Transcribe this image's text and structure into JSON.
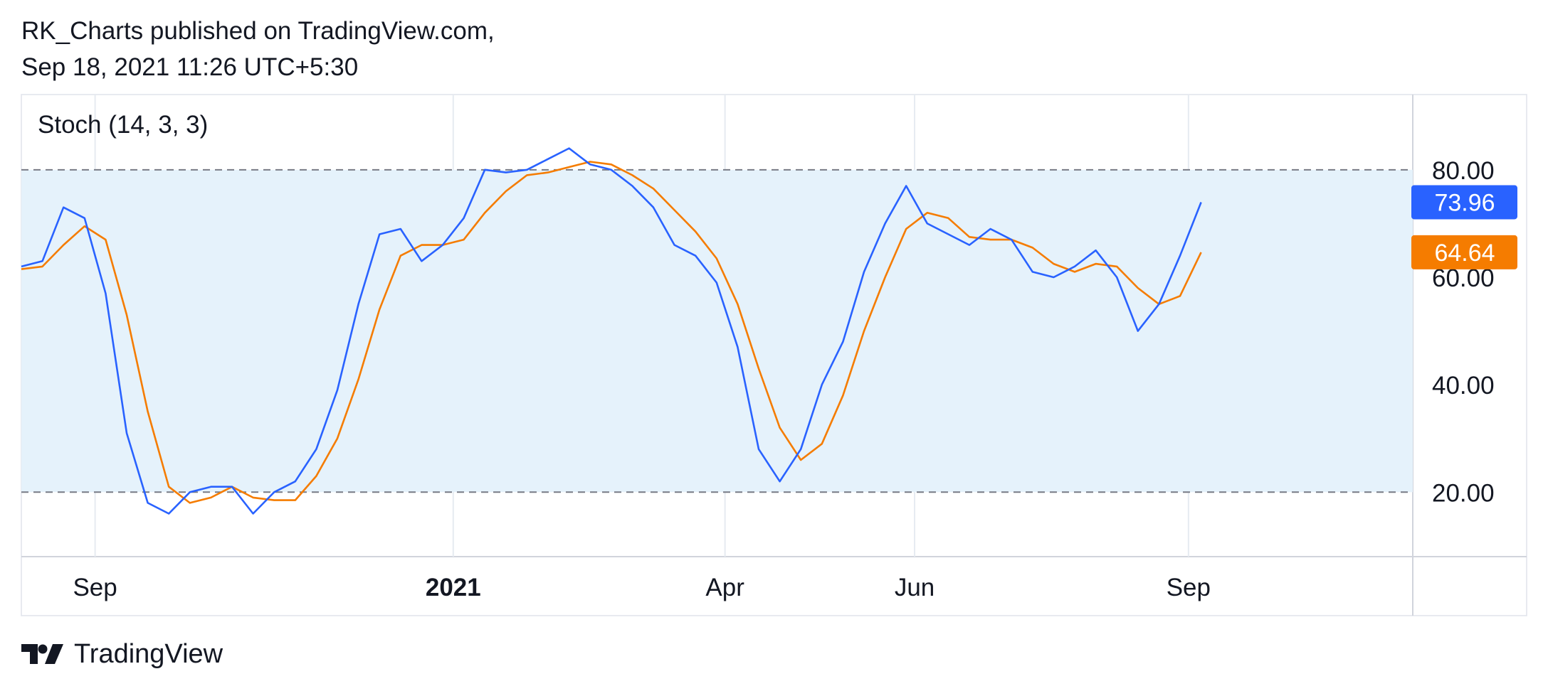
{
  "header": {
    "publisher_line": "RK_Charts published on TradingView.com,",
    "timestamp_line": "Sep 18, 2021 11:26 UTC+5:30"
  },
  "footer": {
    "brand": "TradingView"
  },
  "colors": {
    "k_line": "#2962ff",
    "d_line": "#f57c00",
    "band_fill": "#e5f2fb",
    "level_line": "#787b86",
    "grid": "#e6ebf1"
  },
  "chart_data": {
    "type": "line",
    "title": "Stoch (14, 3, 3)",
    "ylim": [
      8,
      94
    ],
    "y_ticks": [
      "80.00",
      "60.00",
      "40.00",
      "20.00"
    ],
    "levels": [
      80,
      20
    ],
    "grid": true,
    "x_ticks": [
      {
        "label": "Sep",
        "index": 3.5,
        "bold": false
      },
      {
        "label": "2021",
        "index": 20.5,
        "bold": true
      },
      {
        "label": "Apr",
        "index": 33.4,
        "bold": false
      },
      {
        "label": "Jun",
        "index": 42.4,
        "bold": false
      },
      {
        "label": "Sep",
        "index": 55.4,
        "bold": false
      }
    ],
    "series": [
      {
        "key": "k",
        "values": [
          62,
          63,
          73,
          71,
          57,
          31,
          18,
          16,
          20,
          21,
          21,
          16,
          20,
          22,
          28,
          39,
          55,
          68,
          69,
          63,
          66,
          71,
          80,
          79.5,
          80,
          82,
          84,
          81,
          80,
          77,
          73,
          66,
          64,
          59,
          47,
          28,
          22,
          28,
          40,
          48,
          61,
          70,
          77,
          70,
          68,
          66,
          69,
          67,
          61,
          60,
          62,
          65,
          60,
          50,
          55,
          64,
          73.96
        ],
        "last_label": "73.96"
      },
      {
        "key": "d",
        "values": [
          61.5,
          62,
          66,
          69.5,
          67,
          53,
          35,
          21,
          18,
          19,
          21,
          19,
          18.5,
          18.5,
          23,
          30,
          41,
          54,
          64,
          66,
          66,
          67,
          72,
          76,
          79,
          79.5,
          80.5,
          81.5,
          81,
          79,
          76.5,
          72.5,
          68.5,
          63.5,
          55,
          43,
          32,
          26,
          29,
          38,
          50,
          60,
          69,
          72,
          71,
          67.5,
          67,
          67,
          65.5,
          62.5,
          61,
          62.5,
          62,
          58,
          55,
          56.5,
          64.64
        ],
        "last_label": "64.64"
      }
    ]
  }
}
